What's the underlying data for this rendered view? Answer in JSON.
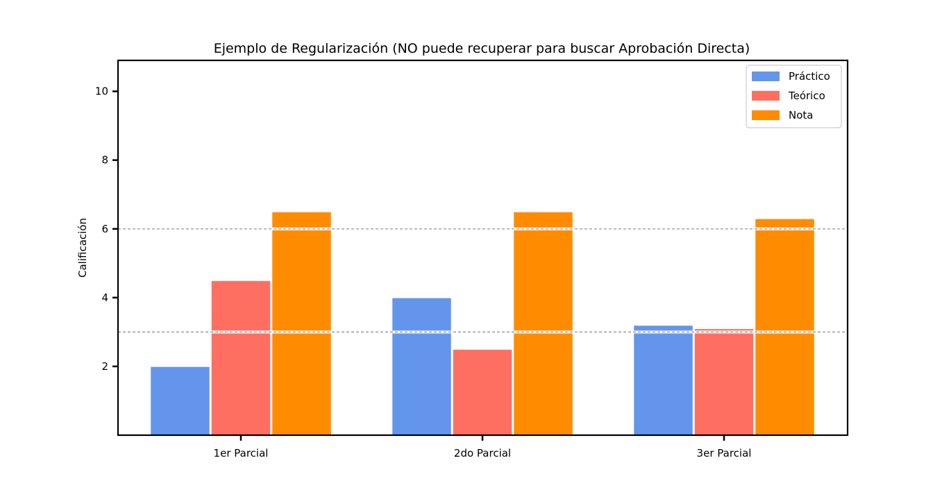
{
  "chart_data": {
    "type": "bar",
    "title": "Ejemplo de Regularización (NO puede recuperar para buscar Aprobación Directa)",
    "xlabel": "",
    "ylabel": "Calificación",
    "categories": [
      "1er Parcial",
      "2do Parcial",
      "3er Parcial"
    ],
    "series": [
      {
        "name": "Práctico",
        "color": "#6495ED",
        "values": [
          2.0,
          4.0,
          3.2
        ]
      },
      {
        "name": "Teórico",
        "color": "#FF6F61",
        "values": [
          4.5,
          2.5,
          3.1
        ]
      },
      {
        "name": "Nota",
        "color": "#FF8C00",
        "values": [
          6.5,
          6.5,
          6.3
        ]
      }
    ],
    "ylim": [
      0,
      10.9
    ],
    "yticks": [
      2,
      4,
      6,
      8,
      10
    ],
    "reference_lines": [
      3,
      6
    ],
    "grid": false,
    "legend_position": "top-right"
  }
}
